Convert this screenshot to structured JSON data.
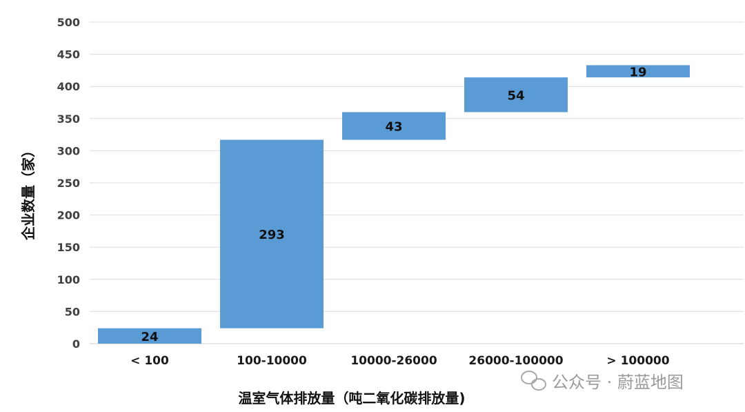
{
  "chart_data": {
    "type": "bar",
    "subtype": "waterfall",
    "categories": [
      "< 100",
      "100-10000",
      "10000-26000",
      "26000-100000",
      "> 100000"
    ],
    "values": [
      24,
      293,
      43,
      54,
      19
    ],
    "xlabel": "温室气体排放量（吨二氧化碳排放量)",
    "ylabel": "企业数量（家）",
    "ylim": [
      0,
      500
    ],
    "yticks": [
      0,
      50,
      100,
      150,
      200,
      250,
      300,
      350,
      400,
      450,
      500
    ],
    "grid": true,
    "legend": "none",
    "bar_color": "#5b9bd5"
  },
  "watermark": {
    "text": "公众号 · 蔚蓝地图",
    "icon": "wechat-icon"
  }
}
